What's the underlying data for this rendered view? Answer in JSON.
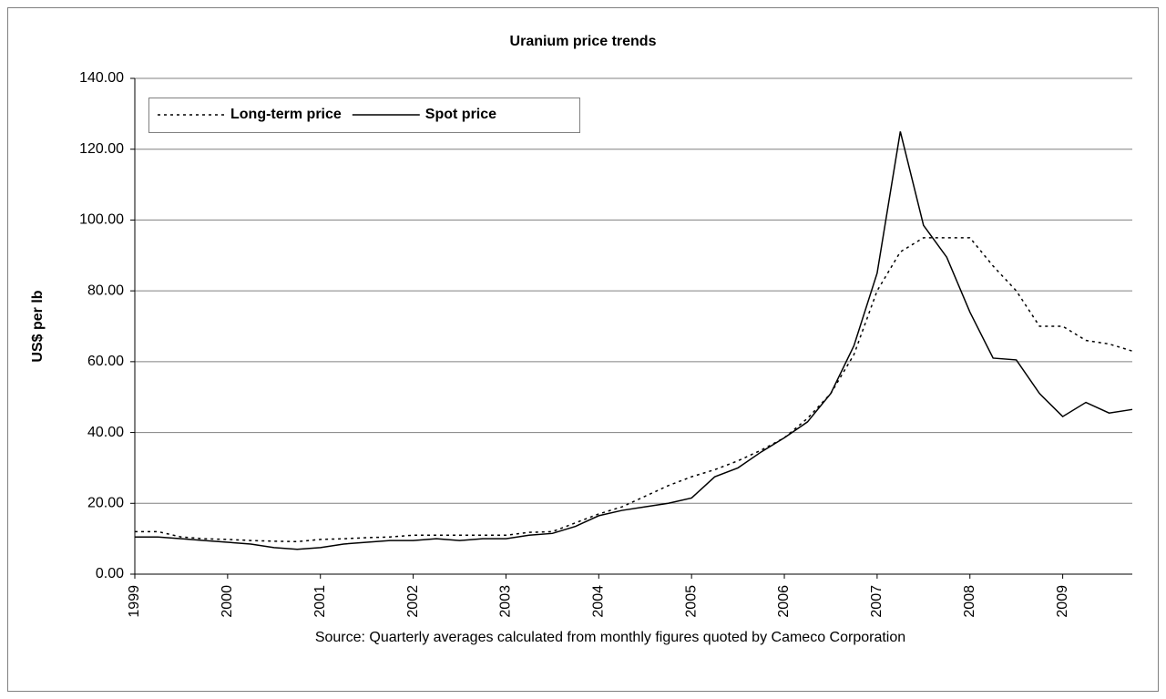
{
  "chart_data": {
    "type": "line",
    "title": "Uranium price trends",
    "ylabel": "US$ per lb",
    "note": "Source: Quarterly averages calculated from monthly figures quoted by Cameco Corporation",
    "x": [
      1999,
      1999.25,
      1999.5,
      1999.75,
      2000,
      2000.25,
      2000.5,
      2000.75,
      2001,
      2001.25,
      2001.5,
      2001.75,
      2002,
      2002.25,
      2002.5,
      2002.75,
      2003,
      2003.25,
      2003.5,
      2003.75,
      2004,
      2004.25,
      2004.5,
      2004.75,
      2005,
      2005.25,
      2005.5,
      2005.75,
      2006,
      2006.25,
      2006.5,
      2006.75,
      2007,
      2007.25,
      2007.5,
      2007.75,
      2008,
      2008.25,
      2008.5,
      2008.75,
      2009,
      2009.25,
      2009.5,
      2009.75
    ],
    "series": [
      {
        "name": "Long-term price",
        "color": "#000000",
        "dash": "dotted",
        "values": [
          12,
          12,
          10.5,
          10,
          9.8,
          9.5,
          9.3,
          9.2,
          9.8,
          10,
          10.3,
          10.5,
          11,
          11,
          11,
          11,
          11,
          11.8,
          12,
          14.5,
          17,
          19,
          22,
          25,
          27.5,
          29.5,
          32,
          35,
          38.5,
          44,
          51,
          62,
          80,
          91,
          95,
          95,
          95,
          87,
          80,
          70,
          70,
          66,
          65,
          63
        ]
      },
      {
        "name": "Spot price",
        "color": "#000000",
        "dash": "solid",
        "values": [
          10.5,
          10.5,
          10,
          9.5,
          9,
          8.5,
          7.5,
          7,
          7.5,
          8.5,
          9,
          9.5,
          9.5,
          10,
          9.5,
          10,
          10,
          11,
          11.5,
          13.5,
          16.5,
          18,
          19,
          20,
          21.5,
          27.5,
          30,
          34.5,
          38.5,
          43,
          51,
          64.5,
          85,
          125,
          98.5,
          89.5,
          74,
          61,
          60.5,
          51,
          44.5,
          48.5,
          45.5,
          46.5
        ]
      }
    ],
    "xlim": [
      1999,
      2009.75
    ],
    "xticks": [
      1999,
      2000,
      2001,
      2002,
      2003,
      2004,
      2005,
      2006,
      2007,
      2008,
      2009
    ],
    "ylim": [
      0,
      140
    ],
    "yticks": [
      {
        "value": 0,
        "label": "0.00"
      },
      {
        "value": 20,
        "label": "20.00"
      },
      {
        "value": 40,
        "label": "40.00"
      },
      {
        "value": 60,
        "label": "60.00"
      },
      {
        "value": 80,
        "label": "80.00"
      },
      {
        "value": 100,
        "label": "100.00"
      },
      {
        "value": 120,
        "label": "120.00"
      },
      {
        "value": 140,
        "label": "140.00"
      }
    ],
    "grid": true,
    "legend": "upper left"
  }
}
